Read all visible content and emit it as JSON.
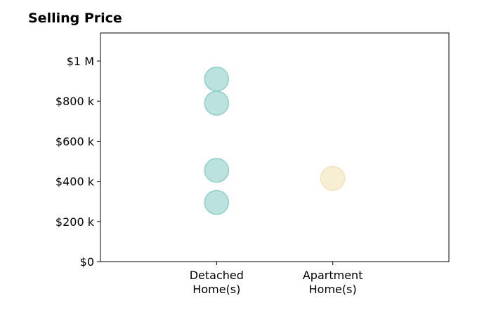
{
  "chart_data": {
    "type": "scatter",
    "title": "Selling Price",
    "xlabel": "",
    "ylabel": "",
    "categories": [
      "Detached Home(s)",
      "Apartment Home(s)"
    ],
    "category_label_lines": [
      [
        "Detached",
        "Home(s)"
      ],
      [
        "Apartment",
        "Home(s)"
      ]
    ],
    "ylim": [
      0,
      1140000
    ],
    "xlim": [
      -1,
      2
    ],
    "yticks": [
      {
        "value": 0,
        "label": "$0"
      },
      {
        "value": 200000,
        "label": "$200 k"
      },
      {
        "value": 400000,
        "label": "$400 k"
      },
      {
        "value": 600000,
        "label": "$600 k"
      },
      {
        "value": 800000,
        "label": "$800 k"
      },
      {
        "value": 1000000,
        "label": "$1 M"
      }
    ],
    "grid": false,
    "series": [
      {
        "category": "Detached Home(s)",
        "color": "#8ecfc9",
        "values": [
          910000,
          790000,
          455000,
          295000
        ]
      },
      {
        "category": "Apartment Home(s)",
        "color": "#f3e2b8",
        "values": [
          415000
        ]
      }
    ]
  }
}
